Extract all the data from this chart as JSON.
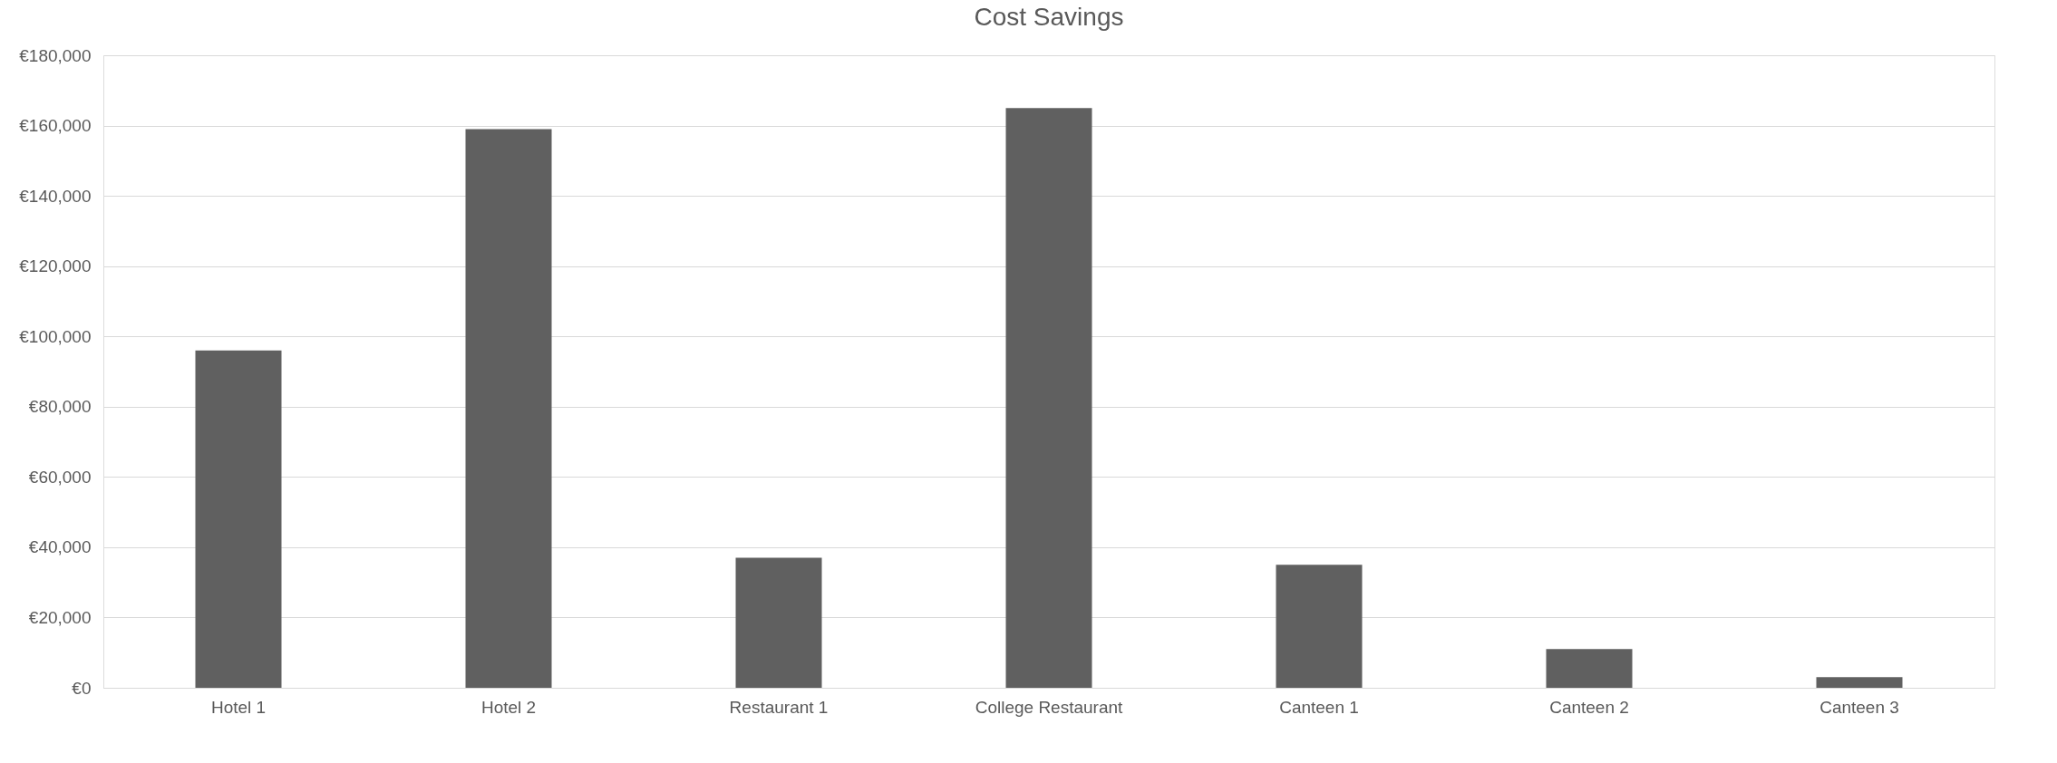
{
  "chart_data": {
    "type": "bar",
    "title": "Cost Savings",
    "categories": [
      "Hotel 1",
      "Hotel 2",
      "Restaurant 1",
      "College Restaurant",
      "Canteen 1",
      "Canteen 2",
      "Canteen 3"
    ],
    "values": [
      96000,
      159000,
      37000,
      165000,
      35000,
      11000,
      3000
    ],
    "color": "#606060",
    "ylim": [
      0,
      180000
    ],
    "yticks": [
      {
        "value": 0,
        "label": "€0"
      },
      {
        "value": 20000,
        "label": "€20,000"
      },
      {
        "value": 40000,
        "label": "€40,000"
      },
      {
        "value": 60000,
        "label": "€60,000"
      },
      {
        "value": 80000,
        "label": "€80,000"
      },
      {
        "value": 100000,
        "label": "€100,000"
      },
      {
        "value": 120000,
        "label": "€120,000"
      },
      {
        "value": 140000,
        "label": "€140,000"
      },
      {
        "value": 160000,
        "label": "€160,000"
      },
      {
        "value": 180000,
        "label": "€180,000"
      }
    ],
    "grid": "y"
  }
}
